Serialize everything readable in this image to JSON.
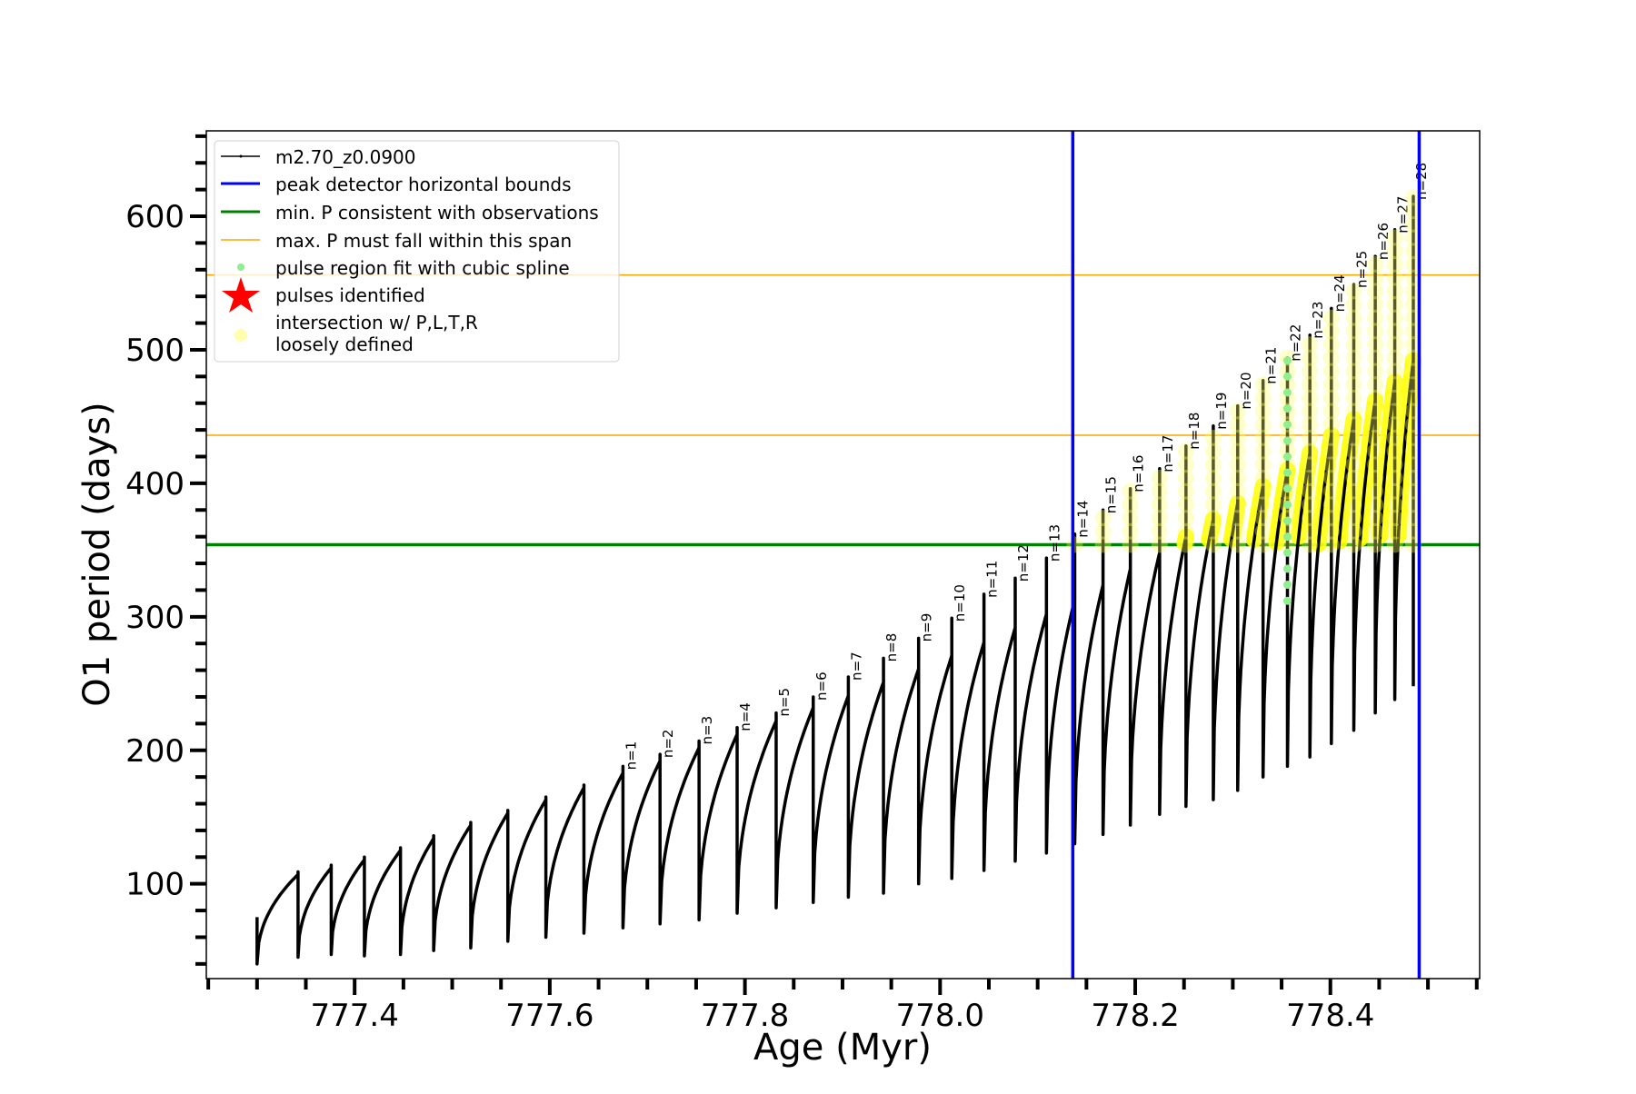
{
  "chart_data": {
    "type": "line",
    "xlabel": "Age (Myr)",
    "ylabel": "O1 period (days)",
    "xlim": [
      777.248,
      778.553
    ],
    "ylim": [
      29,
      664
    ],
    "xticks": [
      "777.4",
      "777.6",
      "777.8",
      "778.0",
      "778.2",
      "778.4"
    ],
    "yticks": [
      "100",
      "200",
      "300",
      "400",
      "500",
      "600"
    ],
    "grid": false,
    "legend_placement": "top-left",
    "legend": [
      {
        "label": "m2.70_z0.0900",
        "color": "#000000",
        "kind": "line-marker"
      },
      {
        "label": "peak detector horizontal bounds",
        "color": "#0000ff",
        "kind": "line"
      },
      {
        "label": "min. P consistent with observations",
        "color": "#008000",
        "kind": "line"
      },
      {
        "label": "max. P must fall within this span",
        "color": "#ffa500",
        "kind": "thin-line"
      },
      {
        "label": "pulse region fit with cubic spline",
        "color": "#90ee90",
        "kind": "dot"
      },
      {
        "label": "pulses identified",
        "color": "#ff0000",
        "kind": "star"
      },
      {
        "label": "intersection w/ P,L,T,R",
        "label2": "loosely defined",
        "color": "#ffff99",
        "kind": "circle"
      }
    ],
    "vertical_bounds": [
      778.136,
      778.491
    ],
    "min_period": 354,
    "max_period_span": [
      436,
      556
    ],
    "start": {
      "age": 777.3,
      "value": 40,
      "spike": 75
    },
    "cycles": [
      {
        "age": 777.342,
        "max": 107,
        "top": 109,
        "min": 45
      },
      {
        "age": 777.376,
        "max": 112,
        "top": 114,
        "min": 47
      },
      {
        "age": 777.41,
        "max": 118,
        "top": 120,
        "min": 46
      },
      {
        "age": 777.447,
        "max": 125,
        "top": 127,
        "min": 47
      },
      {
        "age": 777.481,
        "max": 134,
        "top": 136,
        "min": 50
      },
      {
        "age": 777.519,
        "max": 144,
        "top": 146,
        "min": 52
      },
      {
        "age": 777.557,
        "max": 153,
        "top": 155,
        "min": 57
      },
      {
        "age": 777.596,
        "max": 163,
        "top": 165,
        "min": 60
      },
      {
        "age": 777.635,
        "max": 172,
        "top": 174,
        "min": 63
      },
      {
        "n": "n=1",
        "age": 777.675,
        "max": 183,
        "top": 188,
        "min": 67
      },
      {
        "n": "n=2",
        "age": 777.713,
        "max": 192,
        "top": 197,
        "min": 70
      },
      {
        "n": "n=3",
        "age": 777.753,
        "max": 202,
        "top": 207,
        "min": 73
      },
      {
        "n": "n=4",
        "age": 777.792,
        "max": 212,
        "top": 217,
        "min": 78
      },
      {
        "n": "n=5",
        "age": 777.832,
        "max": 222,
        "top": 228,
        "min": 82
      },
      {
        "n": "n=6",
        "age": 777.87,
        "max": 232,
        "top": 240,
        "min": 86
      },
      {
        "n": "n=7",
        "age": 777.906,
        "max": 241,
        "top": 255,
        "min": 90
      },
      {
        "n": "n=8",
        "age": 777.942,
        "max": 251,
        "top": 269,
        "min": 93
      },
      {
        "n": "n=9",
        "age": 777.978,
        "max": 261,
        "top": 284,
        "min": 100
      },
      {
        "n": "n=10",
        "age": 778.012,
        "max": 271,
        "top": 299,
        "min": 104
      },
      {
        "n": "n=11",
        "age": 778.045,
        "max": 281,
        "top": 317,
        "min": 110
      },
      {
        "n": "n=12",
        "age": 778.077,
        "max": 292,
        "top": 329,
        "min": 117
      },
      {
        "n": "n=13",
        "age": 778.109,
        "max": 302,
        "top": 344,
        "min": 123
      },
      {
        "n": "n=14",
        "age": 778.138,
        "max": 313,
        "top": 362,
        "min": 130
      },
      {
        "n": "n=15",
        "age": 778.167,
        "max": 324,
        "top": 380,
        "min": 137
      },
      {
        "n": "n=16",
        "age": 778.195,
        "max": 336,
        "top": 396,
        "min": 144
      },
      {
        "n": "n=17",
        "age": 778.225,
        "max": 348,
        "top": 411,
        "min": 152
      },
      {
        "n": "n=18",
        "age": 778.252,
        "max": 360,
        "top": 428,
        "min": 158
      },
      {
        "n": "n=19",
        "age": 778.28,
        "max": 373,
        "top": 443,
        "min": 163
      },
      {
        "n": "n=20",
        "age": 778.305,
        "max": 385,
        "top": 458,
        "min": 170
      },
      {
        "n": "n=21",
        "age": 778.331,
        "max": 398,
        "top": 477,
        "min": 180
      },
      {
        "n": "n=22",
        "age": 778.356,
        "max": 410,
        "top": 494,
        "min": 188
      },
      {
        "n": "n=23",
        "age": 778.379,
        "max": 423,
        "top": 511,
        "min": 195
      },
      {
        "n": "n=24",
        "age": 778.401,
        "max": 436,
        "top": 531,
        "min": 205
      },
      {
        "n": "n=25",
        "age": 778.424,
        "max": 448,
        "top": 549,
        "min": 215
      },
      {
        "n": "n=26",
        "age": 778.446,
        "max": 462,
        "top": 570,
        "min": 228
      },
      {
        "n": "n=27",
        "age": 778.466,
        "max": 476,
        "top": 590,
        "min": 238
      },
      {
        "n": "n=28",
        "age": 778.485,
        "max": 492,
        "top": 615,
        "min": 248
      }
    ]
  }
}
